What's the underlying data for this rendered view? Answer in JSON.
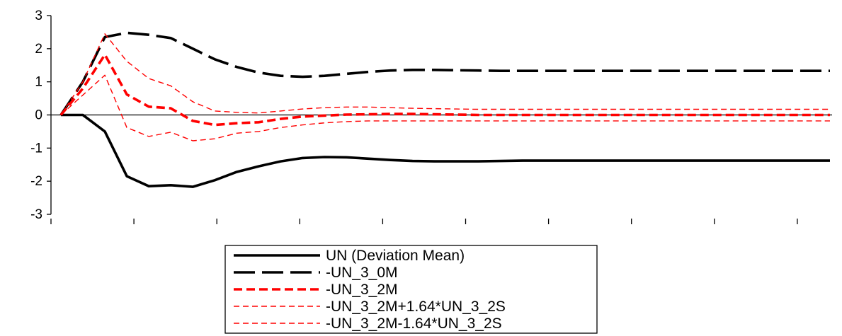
{
  "chart_data": {
    "type": "line",
    "title": "",
    "xlabel": "",
    "ylabel": "",
    "ylim": [
      -3,
      3
    ],
    "yticks": [
      3,
      2,
      1,
      0,
      -1,
      -2,
      -3
    ],
    "x": [
      1,
      2,
      3,
      4,
      5,
      6,
      7,
      8,
      9,
      10,
      11,
      12,
      13,
      14,
      15,
      16,
      17,
      18,
      19,
      20,
      21,
      22,
      23,
      24,
      25,
      26,
      27,
      28,
      29,
      30,
      31,
      32,
      33,
      34,
      35,
      36
    ],
    "x_tick_every": 4,
    "grid": false,
    "legend_position": "bottom-center",
    "series": [
      {
        "name": "UN (Deviation Mean)",
        "color": "#000000",
        "style": "solid-thick",
        "values": [
          0,
          0,
          -0.5,
          -1.85,
          -2.15,
          -2.12,
          -2.17,
          -1.97,
          -1.72,
          -1.55,
          -1.4,
          -1.3,
          -1.27,
          -1.28,
          -1.32,
          -1.36,
          -1.39,
          -1.4,
          -1.4,
          -1.4,
          -1.39,
          -1.38,
          -1.38,
          -1.38,
          -1.38,
          -1.38,
          -1.38,
          -1.38,
          -1.38,
          -1.38,
          -1.38,
          -1.38,
          -1.38,
          -1.38,
          -1.38,
          -1.38
        ]
      },
      {
        "name": "-UN_3_0M",
        "color": "#000000",
        "style": "long-dash-thick",
        "values": [
          0,
          1.0,
          2.35,
          2.48,
          2.42,
          2.32,
          2.0,
          1.68,
          1.45,
          1.28,
          1.18,
          1.15,
          1.18,
          1.24,
          1.3,
          1.34,
          1.36,
          1.36,
          1.35,
          1.34,
          1.33,
          1.33,
          1.33,
          1.33,
          1.33,
          1.33,
          1.33,
          1.33,
          1.33,
          1.33,
          1.33,
          1.33,
          1.33,
          1.33,
          1.33,
          1.33
        ]
      },
      {
        "name": "-UN_3_2M",
        "color": "#ff0000",
        "style": "dash-thick",
        "values": [
          0,
          0.8,
          1.82,
          0.62,
          0.25,
          0.2,
          -0.18,
          -0.3,
          -0.25,
          -0.22,
          -0.12,
          -0.05,
          -0.02,
          0.01,
          0.02,
          0.03,
          0.03,
          0.02,
          0.01,
          0.0,
          0.0,
          0.0,
          0.0,
          0.0,
          0.0,
          0.0,
          0.0,
          0.0,
          0.0,
          0.0,
          0.0,
          0.0,
          0.0,
          0.0,
          0.0,
          0.0
        ]
      },
      {
        "name": "-UN_3_2M+1.64*UN_3_2S",
        "color": "#ff0000",
        "style": "dash-thin",
        "values": [
          0,
          1.0,
          2.45,
          1.62,
          1.1,
          0.88,
          0.4,
          0.12,
          0.08,
          0.06,
          0.12,
          0.18,
          0.22,
          0.24,
          0.24,
          0.22,
          0.2,
          0.19,
          0.18,
          0.17,
          0.17,
          0.17,
          0.17,
          0.17,
          0.17,
          0.17,
          0.17,
          0.17,
          0.17,
          0.17,
          0.17,
          0.17,
          0.17,
          0.17,
          0.17,
          0.17
        ]
      },
      {
        "name": "-UN_3_2M-1.64*UN_3_2S",
        "color": "#ff0000",
        "style": "dash-thin",
        "values": [
          0,
          0.6,
          1.2,
          -0.38,
          -0.65,
          -0.52,
          -0.78,
          -0.72,
          -0.55,
          -0.5,
          -0.38,
          -0.3,
          -0.24,
          -0.2,
          -0.18,
          -0.18,
          -0.18,
          -0.18,
          -0.18,
          -0.18,
          -0.18,
          -0.18,
          -0.18,
          -0.18,
          -0.18,
          -0.18,
          -0.18,
          -0.18,
          -0.18,
          -0.18,
          -0.18,
          -0.18,
          -0.18,
          -0.18,
          -0.18,
          -0.18
        ]
      }
    ]
  }
}
